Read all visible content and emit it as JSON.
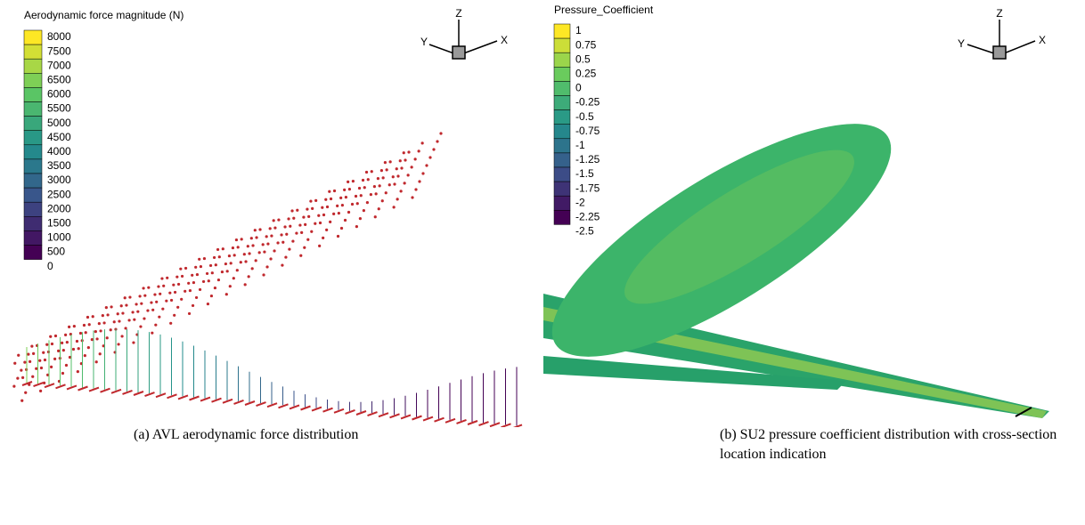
{
  "panels": [
    {
      "colorbar": {
        "title": "Aerodynamic force magnitude (N)",
        "labels": [
          8000,
          7500,
          7000,
          6500,
          6000,
          5500,
          5000,
          4500,
          4000,
          3500,
          3000,
          2500,
          2000,
          1500,
          1000,
          500,
          0
        ]
      },
      "axes": {
        "z": "Z",
        "y": "Y",
        "x": "X"
      },
      "caption": "(a)  AVL aerodynamic force distribution"
    },
    {
      "colorbar": {
        "title": "Pressure_Coefficient",
        "labels": [
          1,
          0.75,
          0.5,
          0.25,
          0,
          -0.25,
          -0.5,
          -0.75,
          -1,
          -1.25,
          -1.5,
          -1.75,
          -2,
          -2.25,
          -2.5
        ]
      },
      "axes": {
        "z": "Z",
        "y": "Y",
        "x": "X"
      },
      "caption": "(b)  SU2 pressure coefficient distribution with cross-section location indication"
    }
  ]
}
